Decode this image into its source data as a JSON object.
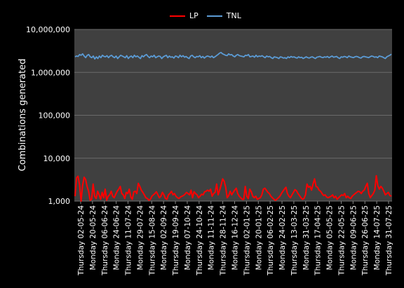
{
  "chart_data": {
    "type": "line",
    "title": "",
    "ylabel": "Combinations generated",
    "xlabel": "",
    "y_scale": "log",
    "ylim": [
      1000,
      10000000
    ],
    "y_tick_labels": [
      "1,000",
      "10,000",
      "100,000",
      "1,000,000",
      "10,000,000"
    ],
    "y_tick_values": [
      1000,
      10000,
      100000,
      1000000,
      10000000
    ],
    "grid": "horizontal",
    "legend_position": "top",
    "x_tick_labels": [
      "Thursday  02-05-24",
      "Monday 20-05-24",
      "Thursday 06-06-24",
      "Monday 24-06-24",
      "Thursday 11-07-24",
      "Monday 29-07-24",
      "Thursday 15-08-24",
      "Monday 02-09-24",
      "Thursday 19-09-24",
      "Monday 07-10-24",
      "Thursday 24-10-24",
      "Monday 11-11-24",
      "Thursday 28-11-24",
      "Monday 16-12-24",
      "Thursday 02-01-25",
      "Monday 20-01-25",
      "Thursday 06-02-25",
      "Monday 24-02-25",
      "Thursday 13-03-25",
      "Monday 31-03-25",
      "Thursday 17-04-25",
      "Monday 05-05-25",
      "Thursday 22-05-25",
      "Monday 09-06-25",
      "Thursday 26-06-25",
      "Monday 14-07-25",
      "Thursday 31-07-25"
    ],
    "series": [
      {
        "name": "LP",
        "color": "#ff0000",
        "values": [
          1300,
          3500,
          3800,
          2400,
          1000,
          2300,
          3600,
          3200,
          2200,
          1700,
          1050,
          1100,
          2500,
          1300,
          1150,
          1700,
          1400,
          1100,
          1600,
          1200,
          1900,
          1050,
          1300,
          1400,
          1700,
          1300,
          1200,
          1450,
          1700,
          1900,
          2200,
          1500,
          1400,
          1150,
          1600,
          1500,
          1900,
          1250,
          1100,
          1650,
          1700,
          1500,
          2600,
          2200,
          1800,
          1600,
          1400,
          1200,
          1150,
          1050,
          1100,
          1300,
          1400,
          1500,
          1650,
          1400,
          1200,
          1300,
          1600,
          1400,
          1150,
          1100,
          1400,
          1500,
          1700,
          1400,
          1500,
          1300,
          1200,
          1150,
          1250,
          1300,
          1350,
          1450,
          1600,
          1500,
          1400,
          1800,
          1200,
          1650,
          1500,
          1400,
          1200,
          1300,
          1450,
          1400,
          1650,
          1700,
          1800,
          1700,
          1900,
          1300,
          1500,
          1600,
          2500,
          1400,
          1800,
          2400,
          3300,
          2900,
          2100,
          1200,
          1350,
          1700,
          1400,
          1600,
          1800,
          2000,
          1500,
          1300,
          1200,
          1100,
          1100,
          2200,
          1300,
          1150,
          1900,
          1650,
          1300,
          1200,
          1300,
          1100,
          1150,
          1200,
          1400,
          1900,
          2000,
          1800,
          1600,
          1500,
          1300,
          1200,
          1100,
          1050,
          1100,
          1200,
          1300,
          1500,
          1700,
          1900,
          2100,
          1500,
          1300,
          1200,
          1400,
          1600,
          1850,
          1750,
          1500,
          1350,
          1200,
          1100,
          1150,
          1400,
          2500,
          2100,
          2200,
          1800,
          2500,
          3300,
          2200,
          2100,
          1800,
          1700,
          1500,
          1350,
          1400,
          1250,
          1200,
          1250,
          1300,
          1400,
          1200,
          1300,
          1100,
          1200,
          1300,
          1400,
          1350,
          1500,
          1200,
          1300,
          1200,
          1150,
          1300,
          1400,
          1500,
          1600,
          1700,
          1650,
          1500,
          1700,
          1800,
          2200,
          2600,
          1500,
          1200,
          1350,
          1500,
          1800,
          3900,
          2300,
          1900,
          2200,
          2000,
          1700,
          1400,
          1500,
          1600,
          1350,
          1300
        ]
      },
      {
        "name": "TNL",
        "color": "#5b9bd5",
        "values": [
          2300000,
          2400000,
          2350000,
          2600000,
          2500000,
          2700000,
          2400000,
          2200000,
          2500000,
          2600000,
          2300000,
          2200000,
          2400000,
          2050000,
          2300000,
          2100000,
          2400000,
          2200000,
          2500000,
          2350000,
          2300000,
          2450000,
          2200000,
          2400000,
          2500000,
          2300000,
          2200000,
          2400000,
          2100000,
          2300000,
          2500000,
          2400000,
          2300000,
          2200000,
          2450000,
          2100000,
          2300000,
          2400000,
          2200000,
          2500000,
          2300000,
          2400000,
          2250000,
          2100000,
          2450000,
          2300000,
          2500000,
          2600000,
          2350000,
          2200000,
          2400000,
          2300000,
          2500000,
          2200000,
          2300000,
          2400000,
          2350000,
          2100000,
          2300000,
          2400000,
          2500000,
          2200000,
          2400000,
          2250000,
          2300000,
          2150000,
          2400000,
          2350000,
          2200000,
          2500000,
          2300000,
          2450000,
          2250000,
          2350000,
          2200000,
          2100000,
          2400000,
          2500000,
          2300000,
          2200000,
          2350000,
          2300000,
          2450000,
          2200000,
          2350000,
          2150000,
          2300000,
          2400000,
          2350000,
          2250000,
          2400000,
          2200000,
          2300000,
          2450000,
          2600000,
          2800000,
          2900000,
          2700000,
          2600000,
          2500000,
          2450000,
          2700000,
          2550000,
          2600000,
          2400000,
          2300000,
          2500000,
          2600000,
          2450000,
          2400000,
          2350000,
          2300000,
          2500000,
          2450000,
          2600000,
          2300000,
          2350000,
          2400000,
          2250000,
          2500000,
          2300000,
          2400000,
          2350000,
          2450000,
          2300000,
          2200000,
          2400000,
          2300000,
          2350000,
          2200000,
          2100000,
          2300000,
          2250000,
          2200000,
          2100000,
          2300000,
          2250000,
          2150000,
          2200000,
          2100000,
          2300000,
          2200000,
          2350000,
          2250000,
          2300000,
          2200000,
          2150000,
          2300000,
          2200000,
          2250000,
          2100000,
          2200000,
          2300000,
          2200000,
          2150000,
          2250000,
          2300000,
          2200000,
          2100000,
          2250000,
          2300000,
          2350000,
          2250000,
          2200000,
          2300000,
          2250000,
          2350000,
          2200000,
          2300000,
          2400000,
          2250000,
          2300000,
          2350000,
          2200000,
          2100000,
          2300000,
          2250000,
          2350000,
          2300000,
          2200000,
          2400000,
          2300000,
          2250000,
          2200000,
          2300000,
          2350000,
          2300000,
          2200000,
          2150000,
          2300000,
          2350000,
          2300000,
          2250000,
          2200000,
          2300000,
          2400000,
          2350000,
          2250000,
          2300000,
          2200000,
          2400000,
          2350000,
          2300000,
          2200000,
          2100000,
          2300000,
          2400000,
          2500000,
          2650000
        ]
      }
    ]
  },
  "colors": {
    "background": "#000000",
    "plot_area": "#404040",
    "gridline": "#6b6b6b",
    "text": "#ffffff"
  }
}
